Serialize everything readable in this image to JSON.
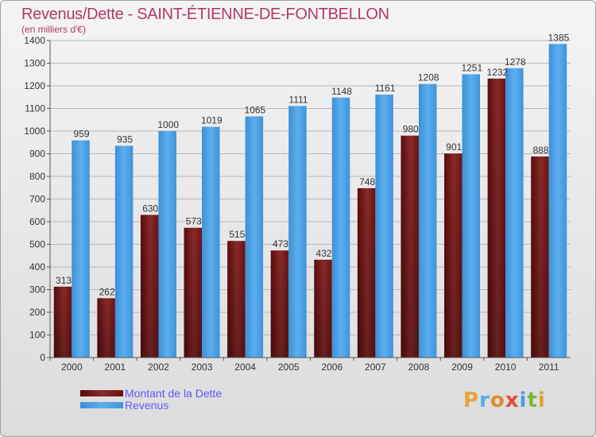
{
  "header": {
    "title": "Revenus/Dette - SAINT-ÉTIENNE-DE-FONTBELLON",
    "subtitle": "(en milliers d'€)"
  },
  "colors": {
    "title": "#b03a6a",
    "dette": "#7a1a1a",
    "revenus": "#4fa3e6",
    "legend_text": "#5a5aff",
    "grid": "#b8b8b8"
  },
  "chart_data": {
    "type": "bar",
    "title": "Revenus/Dette - SAINT-ÉTIENNE-DE-FONTBELLON",
    "ylabel": "(en milliers d'€)",
    "xlabel": "",
    "categories": [
      "2000",
      "2001",
      "2002",
      "2003",
      "2004",
      "2005",
      "2006",
      "2007",
      "2008",
      "2009",
      "2010",
      "2011"
    ],
    "series": [
      {
        "name": "Montant de la Dette",
        "values": [
          313,
          262,
          630,
          573,
          515,
          473,
          432,
          748,
          980,
          901,
          1232,
          888
        ]
      },
      {
        "name": "Revenus",
        "values": [
          959,
          935,
          1000,
          1019,
          1065,
          1111,
          1148,
          1161,
          1208,
          1251,
          1278,
          1385
        ]
      }
    ],
    "ylim": [
      0,
      1400
    ],
    "yticks": [
      0,
      100,
      200,
      300,
      400,
      500,
      600,
      700,
      800,
      900,
      1000,
      1100,
      1200,
      1300,
      1400
    ],
    "grid": true,
    "legend_position": "bottom-left"
  },
  "legend": {
    "items": [
      {
        "label": "Montant de la Dette"
      },
      {
        "label": "Revenus"
      }
    ]
  },
  "logo": {
    "text": "Proxiti"
  }
}
